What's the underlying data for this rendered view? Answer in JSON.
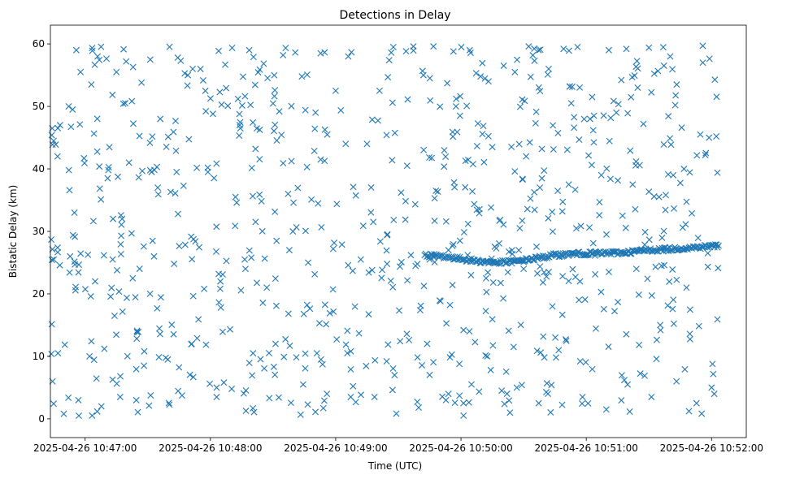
{
  "chart_data": {
    "type": "scatter",
    "title": "Detections in Delay",
    "xlabel": "Time (UTC)",
    "ylabel": "Bistatic Delay (km)",
    "marker": "x",
    "color": "#1f77b4",
    "x_unit": "minutes since 2025-04-26 10:47:00",
    "xlim": [
      -0.277,
      5.277
    ],
    "ylim": [
      -3,
      63
    ],
    "x_ticks": [
      {
        "value": 0,
        "label": "2025-04-26 10:47:00"
      },
      {
        "value": 1,
        "label": "2025-04-26 10:48:00"
      },
      {
        "value": 2,
        "label": "2025-04-26 10:49:00"
      },
      {
        "value": 3,
        "label": "2025-04-26 10:50:00"
      },
      {
        "value": 4,
        "label": "2025-04-26 10:51:00"
      },
      {
        "value": 5,
        "label": "2025-04-26 10:52:00"
      }
    ],
    "y_ticks": [
      {
        "value": 0,
        "label": "0"
      },
      {
        "value": 10,
        "label": "10"
      },
      {
        "value": 20,
        "label": "20"
      },
      {
        "value": 30,
        "label": "30"
      },
      {
        "value": 40,
        "label": "40"
      },
      {
        "value": 50,
        "label": "50"
      },
      {
        "value": 60,
        "label": "60"
      }
    ],
    "track": {
      "description": "dense target track",
      "x_start": 2.71,
      "x_end": 5.06,
      "points": [
        [
          2.71,
          26.2
        ],
        [
          2.85,
          26.0
        ],
        [
          3.0,
          25.6
        ],
        [
          3.15,
          25.2
        ],
        [
          3.3,
          25.0
        ],
        [
          3.45,
          25.2
        ],
        [
          3.6,
          25.7
        ],
        [
          3.75,
          26.2
        ],
        [
          3.9,
          26.4
        ],
        [
          4.1,
          26.5
        ],
        [
          4.3,
          26.6
        ],
        [
          4.5,
          27.0
        ],
        [
          4.7,
          27.2
        ],
        [
          4.9,
          27.5
        ],
        [
          5.06,
          27.7
        ]
      ]
    },
    "clutter_seed": 7,
    "clutter_count": 690,
    "series": [
      {
        "name": "detections",
        "points": [
          [
            -0.32,
            59.5
          ],
          [
            -0.07,
            59.0
          ],
          [
            0.1,
            58.0
          ],
          [
            0.52,
            57.5
          ],
          [
            0.74,
            57.8
          ],
          [
            1.31,
            59.0
          ],
          [
            1.58,
            58.2
          ],
          [
            1.88,
            58.5
          ],
          [
            2.1,
            58.0
          ],
          [
            2.46,
            59.5
          ],
          [
            2.62,
            59.6
          ],
          [
            2.78,
            59.6
          ],
          [
            2.94,
            58.8
          ],
          [
            3.07,
            59.0
          ],
          [
            3.54,
            59.6
          ],
          [
            3.62,
            59.0
          ],
          [
            3.93,
            59.5
          ],
          [
            4.18,
            59.0
          ],
          [
            4.32,
            59.2
          ],
          [
            4.5,
            59.4
          ],
          [
            4.67,
            58.0
          ],
          [
            4.93,
            57.0
          ],
          [
            -0.2,
            47.0
          ],
          [
            -0.1,
            49.5
          ],
          [
            0.05,
            53.5
          ],
          [
            0.25,
            55.5
          ],
          [
            0.45,
            53.8
          ],
          [
            0.6,
            48.0
          ],
          [
            0.82,
            55.0
          ],
          [
            1.02,
            48.8
          ],
          [
            1.22,
            51.2
          ],
          [
            1.55,
            49.2
          ],
          [
            1.73,
            54.8
          ],
          [
            2.0,
            52.5
          ],
          [
            2.35,
            52.5
          ],
          [
            2.7,
            55.0
          ],
          [
            2.96,
            50.0
          ],
          [
            3.22,
            54.0
          ],
          [
            3.43,
            55.5
          ],
          [
            3.7,
            56.0
          ],
          [
            3.88,
            50.5
          ],
          [
            4.03,
            48.0
          ],
          [
            4.24,
            49.0
          ],
          [
            4.41,
            53.0
          ],
          [
            4.71,
            50.2
          ],
          [
            4.91,
            45.5
          ],
          [
            -0.22,
            42.0
          ],
          [
            -0.13,
            39.8
          ],
          [
            0.18,
            38.5
          ],
          [
            0.35,
            41.0
          ],
          [
            0.58,
            37.0
          ],
          [
            0.73,
            39.5
          ],
          [
            0.98,
            39.5
          ],
          [
            1.2,
            35.5
          ],
          [
            1.36,
            43.2
          ],
          [
            1.62,
            36.0
          ],
          [
            1.88,
            41.5
          ],
          [
            2.08,
            44.0
          ],
          [
            2.25,
            44.0
          ],
          [
            2.57,
            40.5
          ],
          [
            2.8,
            36.5
          ],
          [
            3.25,
            43.5
          ],
          [
            3.52,
            42.0
          ],
          [
            3.63,
            37.0
          ],
          [
            3.86,
            37.5
          ],
          [
            4.12,
            39.0
          ],
          [
            4.37,
            37.5
          ],
          [
            4.58,
            35.5
          ],
          [
            4.78,
            40.0
          ],
          [
            4.98,
            45.0
          ],
          [
            -0.25,
            25.5
          ],
          [
            -0.12,
            26.0
          ],
          [
            0.08,
            22.0
          ],
          [
            0.22,
            25.5
          ],
          [
            0.38,
            22.5
          ],
          [
            0.55,
            26.0
          ],
          [
            0.71,
            24.8
          ],
          [
            0.95,
            20.8
          ],
          [
            1.08,
            22.0
          ],
          [
            1.28,
            24.0
          ],
          [
            1.45,
            21.0
          ],
          [
            1.63,
            27.0
          ],
          [
            1.78,
            25.0
          ],
          [
            1.98,
            27.2
          ],
          [
            2.2,
            25.5
          ],
          [
            2.41,
            24.8
          ],
          [
            2.6,
            26.2
          ],
          [
            2.75,
            25.5
          ],
          [
            2.9,
            27.0
          ],
          [
            3.08,
            23.0
          ],
          [
            3.2,
            22.5
          ],
          [
            3.36,
            25.0
          ],
          [
            3.5,
            24.0
          ],
          [
            3.7,
            23.5
          ],
          [
            3.95,
            22.0
          ],
          [
            4.18,
            23.5
          ],
          [
            4.4,
            24.0
          ],
          [
            4.6,
            24.5
          ],
          [
            4.8,
            21.0
          ],
          [
            4.97,
            26.5
          ],
          [
            -0.26,
            6.0
          ],
          [
            -0.17,
            0.8
          ],
          [
            -0.05,
            0.5
          ],
          [
            0.13,
            2.0
          ],
          [
            0.28,
            3.5
          ],
          [
            0.47,
            8.5
          ],
          [
            0.66,
            9.5
          ],
          [
            0.85,
            12.0
          ],
          [
            1.05,
            5.0
          ],
          [
            1.17,
            4.8
          ],
          [
            1.34,
            10.5
          ],
          [
            1.52,
            12.0
          ],
          [
            1.74,
            5.5
          ],
          [
            1.93,
            4.0
          ],
          [
            2.12,
            3.5
          ],
          [
            2.31,
            3.5
          ],
          [
            2.47,
            7.0
          ],
          [
            2.73,
            12.0
          ],
          [
            2.88,
            3.0
          ],
          [
            3.02,
            2.5
          ],
          [
            3.21,
            10.0
          ],
          [
            3.42,
            11.5
          ],
          [
            3.62,
            2.5
          ],
          [
            3.78,
            11.0
          ],
          [
            3.97,
            3.5
          ],
          [
            4.16,
            1.5
          ],
          [
            4.33,
            5.5
          ],
          [
            4.52,
            3.5
          ],
          [
            4.72,
            6.0
          ],
          [
            4.88,
            2.5
          ],
          [
            5.0,
            5.0
          ]
        ]
      }
    ]
  }
}
